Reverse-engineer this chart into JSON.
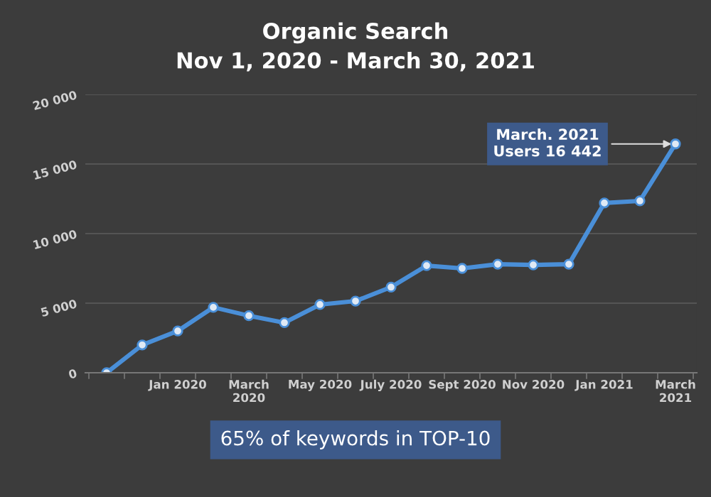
{
  "chart_data": {
    "type": "line",
    "title": "Organic Search\nNov 1, 2020 - March 30, 2021",
    "categories": [
      null,
      null,
      "Jan 2020",
      null,
      "March\n2020",
      null,
      "May 2020",
      null,
      "July 2020",
      null,
      "Sept 2020",
      null,
      "Nov 2020",
      null,
      "Jan 2021",
      null,
      "March\n2021"
    ],
    "series": [
      {
        "color": "#4a8fd8",
        "values": [
          0,
          2000,
          3000,
          4700,
          4100,
          3600,
          4900,
          5150,
          6150,
          7700,
          7500,
          7800,
          7750,
          7800,
          12200,
          12350,
          16442
        ]
      }
    ],
    "ylim": [
      0,
      20000
    ],
    "yticks": [
      {
        "value": 0,
        "label": "0"
      },
      {
        "value": 5000,
        "label": "5 000"
      },
      {
        "value": 10000,
        "label": "10 000"
      },
      {
        "value": 15000,
        "label": "15 000"
      },
      {
        "value": 20000,
        "label": "20 000"
      }
    ],
    "grid": "y",
    "marker": "circle",
    "line_style": "solid",
    "annotations": [
      {
        "text": "March. 2021\nUsers 16 442",
        "x": "March\n2021",
        "y": 16442
      },
      "65% of keywords in TOP-10"
    ]
  }
}
